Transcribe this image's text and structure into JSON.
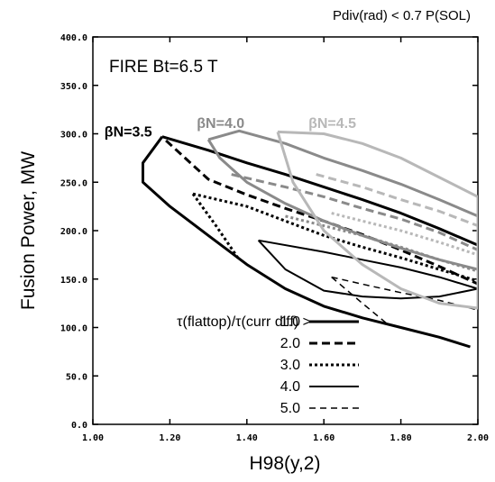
{
  "chart_data": {
    "type": "line",
    "title": "FIRE Bt=6.5 T",
    "top_note": "Pdiv(rad) < 0.7 P(SOL)",
    "xlabel": "H98(y,2)",
    "ylabel": "Fusion Power, MW",
    "xlim": [
      1.0,
      2.0
    ],
    "ylim": [
      0.0,
      400.0
    ],
    "x_ticks": [
      1.0,
      1.2,
      1.4,
      1.6,
      1.8,
      2.0
    ],
    "y_ticks": [
      0,
      50,
      100,
      150,
      200,
      250,
      300,
      350,
      400
    ],
    "x_tick_labels": [
      "1.00",
      "1.20",
      "1.40",
      "1.60",
      "1.80",
      "2.00"
    ],
    "y_tick_labels": [
      "0.0",
      "50.0",
      "100.0",
      "150.0",
      "200.0",
      "250.0",
      "300.0",
      "350.0",
      "400.0"
    ],
    "grid": false,
    "group_labels": [
      {
        "text": "βN=3.5",
        "color": "#000000",
        "x": 1.03,
        "y": 297
      },
      {
        "text": "βN=4.0",
        "color": "#8a8a8a",
        "x": 1.27,
        "y": 306
      },
      {
        "text": "βN=4.5",
        "color": "#b8b8b8",
        "x": 1.56,
        "y": 306
      }
    ],
    "legend": {
      "position": "lower-center",
      "title": "τ(flattop)/τ(curr diff) >",
      "entries": [
        "1.0",
        "2.0",
        "3.0",
        "4.0",
        "5.0"
      ]
    },
    "series": [
      {
        "group": "βN=3.5",
        "threshold": "1.0",
        "color": "#000000",
        "dash": "solid",
        "width": 3,
        "x": [
          1.18,
          1.13,
          1.13,
          1.2,
          1.3,
          1.4,
          1.5,
          1.6,
          1.7,
          1.8,
          1.9,
          1.98
        ],
        "y": [
          297,
          270,
          250,
          225,
          195,
          165,
          140,
          122,
          110,
          100,
          90,
          80
        ]
      },
      {
        "group": "βN=3.5",
        "threshold": "1.0",
        "color": "#000000",
        "dash": "solid",
        "width": 3,
        "x": [
          1.18,
          1.3,
          1.4,
          1.5,
          1.6,
          1.7,
          1.8,
          1.9,
          2.0
        ],
        "y": [
          297,
          283,
          270,
          258,
          245,
          232,
          218,
          202,
          185
        ]
      },
      {
        "group": "βN=3.5",
        "threshold": "2.0",
        "color": "#000000",
        "dash": "bold-dash",
        "width": 3,
        "x": [
          1.19,
          1.3,
          1.4,
          1.5,
          1.6,
          1.7,
          1.8,
          1.9,
          2.0
        ],
        "y": [
          293,
          253,
          237,
          223,
          210,
          196,
          180,
          163,
          145
        ]
      },
      {
        "group": "βN=3.5",
        "threshold": "3.0",
        "color": "#000000",
        "dash": "dotted",
        "width": 3,
        "x": [
          1.26,
          1.4,
          1.5,
          1.6,
          1.7,
          1.8,
          1.9,
          2.0
        ],
        "y": [
          238,
          225,
          210,
          195,
          183,
          172,
          160,
          148
        ]
      },
      {
        "group": "βN=3.5",
        "threshold": "3.0",
        "color": "#000000",
        "dash": "dotted",
        "width": 3,
        "x": [
          1.26,
          1.32,
          1.38
        ],
        "y": [
          238,
          205,
          170
        ]
      },
      {
        "group": "βN=3.5",
        "threshold": "4.0",
        "color": "#000000",
        "dash": "thin-solid",
        "width": 2,
        "x": [
          1.43,
          1.6,
          1.7,
          1.8,
          1.9,
          2.0,
          1.9,
          1.8,
          1.7,
          1.6,
          1.5,
          1.43
        ],
        "y": [
          190,
          178,
          170,
          162,
          152,
          140,
          132,
          130,
          132,
          138,
          160,
          190
        ]
      },
      {
        "group": "βN=3.5",
        "threshold": "5.0",
        "color": "#000000",
        "dash": "thin-dash",
        "width": 1.5,
        "x": [
          1.62,
          1.72,
          1.8,
          1.9,
          2.0
        ],
        "y": [
          152,
          143,
          136,
          128,
          118
        ]
      },
      {
        "group": "βN=3.5",
        "threshold": "5.0",
        "color": "#000000",
        "dash": "thin-dash",
        "width": 1.5,
        "x": [
          1.62,
          1.7,
          1.77
        ],
        "y": [
          152,
          125,
          102
        ]
      },
      {
        "group": "βN=4.0",
        "threshold": "1.0",
        "color": "#8a8a8a",
        "dash": "solid",
        "width": 3,
        "x": [
          1.3,
          1.38,
          1.5,
          1.6,
          1.7,
          1.8,
          1.9,
          2.0,
          2.0,
          1.9,
          1.8,
          1.7,
          1.6,
          1.5,
          1.4,
          1.33,
          1.3
        ],
        "y": [
          294,
          303,
          290,
          275,
          262,
          248,
          232,
          215,
          160,
          170,
          182,
          195,
          210,
          228,
          250,
          275,
          294
        ]
      },
      {
        "group": "βN=4.0",
        "threshold": "2.0",
        "color": "#8a8a8a",
        "dash": "bold-dash",
        "width": 3,
        "x": [
          1.36,
          1.5,
          1.6,
          1.7,
          1.8,
          1.9,
          2.0
        ],
        "y": [
          258,
          245,
          235,
          223,
          212,
          198,
          180
        ]
      },
      {
        "group": "βN=4.0",
        "threshold": "3.0",
        "color": "#8a8a8a",
        "dash": "dotted",
        "width": 3,
        "x": [
          1.5,
          1.6,
          1.7,
          1.8,
          1.9,
          2.0
        ],
        "y": [
          215,
          205,
          195,
          183,
          170,
          158
        ]
      },
      {
        "group": "βN=4.5",
        "threshold": "1.0",
        "color": "#b8b8b8",
        "dash": "solid",
        "width": 3,
        "x": [
          1.48,
          1.6,
          1.7,
          1.8,
          1.9,
          2.0,
          2.0,
          1.9,
          1.8,
          1.7,
          1.6,
          1.52,
          1.48
        ],
        "y": [
          302,
          300,
          290,
          275,
          255,
          235,
          120,
          125,
          140,
          165,
          200,
          250,
          302
        ]
      },
      {
        "group": "βN=4.5",
        "threshold": "2.0",
        "color": "#b8b8b8",
        "dash": "bold-dash",
        "width": 3,
        "x": [
          1.58,
          1.7,
          1.8,
          1.9,
          2.0
        ],
        "y": [
          258,
          245,
          232,
          220,
          205
        ]
      },
      {
        "group": "βN=4.5",
        "threshold": "3.0",
        "color": "#b8b8b8",
        "dash": "dotted",
        "width": 3,
        "x": [
          1.62,
          1.7,
          1.8,
          1.9,
          2.0
        ],
        "y": [
          218,
          210,
          200,
          188,
          175
        ]
      }
    ]
  }
}
